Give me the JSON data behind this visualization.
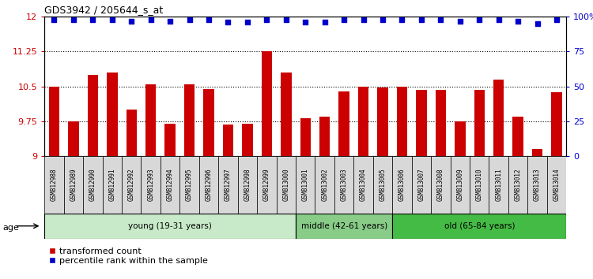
{
  "title": "GDS3942 / 205644_s_at",
  "samples": [
    "GSM812988",
    "GSM812989",
    "GSM812990",
    "GSM812991",
    "GSM812992",
    "GSM812993",
    "GSM812994",
    "GSM812995",
    "GSM812996",
    "GSM812997",
    "GSM812998",
    "GSM812999",
    "GSM813000",
    "GSM813001",
    "GSM813002",
    "GSM813003",
    "GSM813004",
    "GSM813005",
    "GSM813006",
    "GSM813007",
    "GSM813008",
    "GSM813009",
    "GSM813010",
    "GSM813011",
    "GSM813012",
    "GSM813013",
    "GSM813014"
  ],
  "bar_values": [
    10.5,
    9.75,
    10.75,
    10.8,
    10.0,
    10.55,
    9.7,
    10.55,
    10.45,
    9.68,
    9.7,
    11.25,
    10.8,
    9.82,
    9.85,
    10.4,
    10.5,
    10.48,
    10.5,
    10.42,
    10.43,
    9.75,
    10.42,
    10.65,
    9.85,
    9.15,
    10.38
  ],
  "percentile_values": [
    98,
    98,
    98,
    98,
    97,
    98,
    97,
    98,
    98,
    96,
    96,
    98,
    98,
    96,
    96,
    98,
    98,
    98,
    98,
    98,
    98,
    97,
    98,
    98,
    97,
    95,
    98
  ],
  "bar_color": "#cc0000",
  "percentile_color": "#0000cc",
  "ylim_left": [
    9.0,
    12.0
  ],
  "ylim_right": [
    0,
    100
  ],
  "yticks_left": [
    9.0,
    9.75,
    10.5,
    11.25,
    12.0
  ],
  "yticks_right": [
    0,
    25,
    50,
    75,
    100
  ],
  "ytick_labels_left": [
    "9",
    "9.75",
    "10.5",
    "11.25",
    "12"
  ],
  "ytick_labels_right": [
    "0",
    "25",
    "50",
    "75",
    "100%"
  ],
  "groups": [
    {
      "label": "young (19-31 years)",
      "start": 0,
      "end": 13,
      "color": "#c8eac8"
    },
    {
      "label": "middle (42-61 years)",
      "start": 13,
      "end": 18,
      "color": "#88cc88"
    },
    {
      "label": "old (65-84 years)",
      "start": 18,
      "end": 27,
      "color": "#44bb44"
    }
  ],
  "legend_items": [
    {
      "label": "transformed count",
      "color": "#cc0000"
    },
    {
      "label": "percentile rank within the sample",
      "color": "#0000cc"
    }
  ],
  "bg_color": "#d8d8d8",
  "bar_width": 0.55
}
